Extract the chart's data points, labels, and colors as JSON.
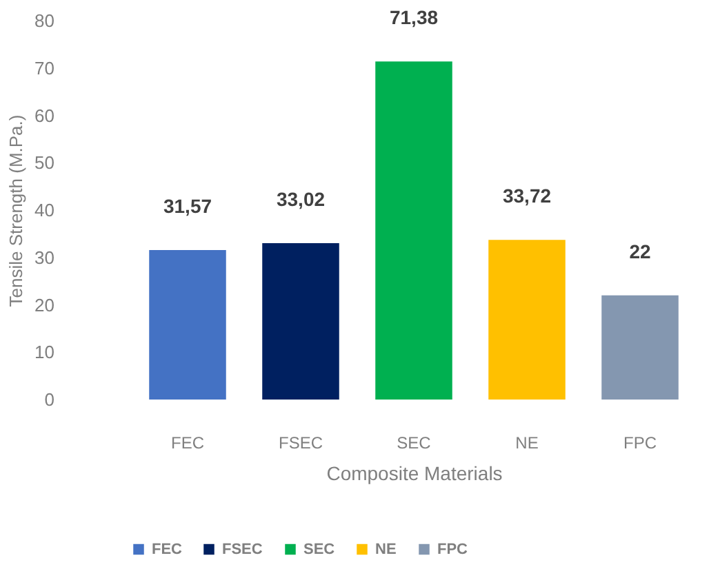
{
  "chart_data": {
    "type": "bar",
    "xlabel": "Composite Materials",
    "ylabel": "Tensile Strength  (M.Pa.)",
    "categories": [
      "FEC",
      "FSEC",
      "SEC",
      "NE",
      "FPC"
    ],
    "stacked": true,
    "series": [
      {
        "name": "FEC",
        "color": "#4472c4",
        "values": [
          31.57,
          null,
          null,
          null,
          null
        ],
        "value_labels": [
          "31,57",
          null,
          null,
          null,
          null
        ]
      },
      {
        "name": "FSEC",
        "color": "#002060",
        "values": [
          null,
          33.02,
          null,
          null,
          null
        ],
        "value_labels": [
          null,
          "33,02",
          null,
          null,
          null
        ]
      },
      {
        "name": "SEC",
        "color": "#00b050",
        "values": [
          null,
          null,
          71.38,
          null,
          null
        ],
        "value_labels": [
          null,
          null,
          "71,38",
          null,
          null
        ]
      },
      {
        "name": "NE",
        "color": "#ffc000",
        "values": [
          null,
          null,
          null,
          33.72,
          null
        ],
        "value_labels": [
          null,
          null,
          null,
          "33,72",
          null
        ]
      },
      {
        "name": "FPC",
        "color": "#8497b0",
        "values": [
          null,
          null,
          null,
          null,
          22
        ],
        "value_labels": [
          null,
          null,
          null,
          null,
          "22"
        ]
      }
    ],
    "ylim": [
      0,
      80
    ],
    "yticks": [
      0,
      10,
      20,
      30,
      40,
      50,
      60,
      70,
      80
    ],
    "legend": "bottom"
  }
}
